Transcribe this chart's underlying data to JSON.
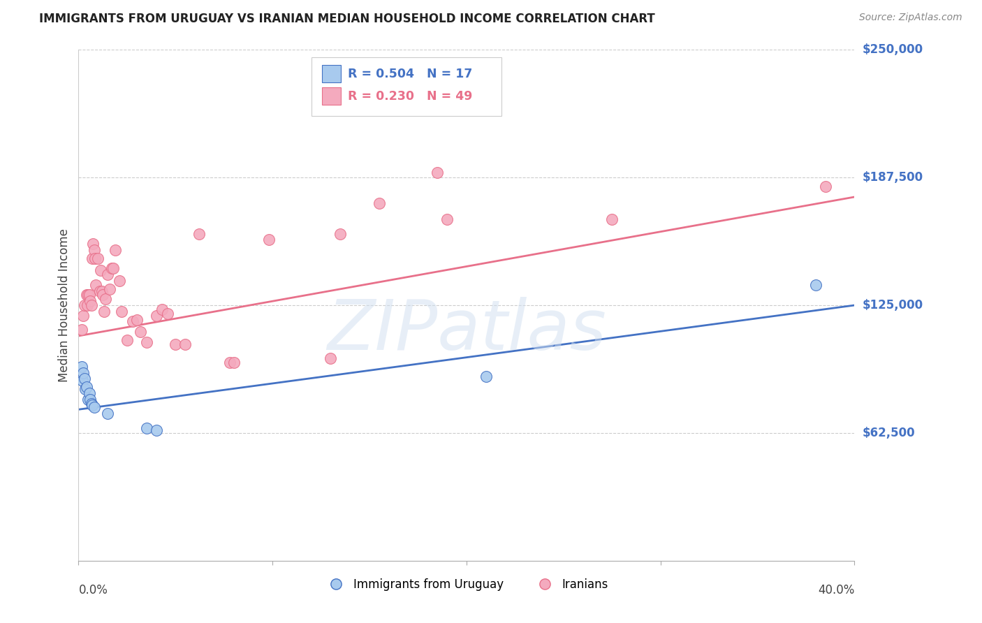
{
  "title": "IMMIGRANTS FROM URUGUAY VS IRANIAN MEDIAN HOUSEHOLD INCOME CORRELATION CHART",
  "source": "Source: ZipAtlas.com",
  "ylabel": "Median Household Income",
  "xmin": 0.0,
  "xmax": 40.0,
  "ymin": 0,
  "ymax": 250000,
  "yticks": [
    62500,
    125000,
    187500,
    250000
  ],
  "ytick_labels": [
    "$62,500",
    "$125,000",
    "$187,500",
    "$250,000"
  ],
  "color_blue": "#A8CAEE",
  "color_pink": "#F4AABE",
  "color_blue_line": "#4472C4",
  "color_pink_line": "#E8708A",
  "color_blue_dark": "#4472C4",
  "color_pink_dark": "#E8708A",
  "color_label": "#4472C4",
  "watermark_text": "ZIPatlas",
  "legend_label_blue": "Immigrants from Uruguay",
  "legend_label_pink": "Iranians",
  "legend1_r": "R = 0.504",
  "legend1_n": "N = 17",
  "legend2_r": "R = 0.230",
  "legend2_n": "N = 49",
  "blue_points": [
    [
      0.15,
      95000
    ],
    [
      0.2,
      88000
    ],
    [
      0.25,
      92000
    ],
    [
      0.3,
      89000
    ],
    [
      0.35,
      84000
    ],
    [
      0.4,
      85000
    ],
    [
      0.5,
      79000
    ],
    [
      0.55,
      82000
    ],
    [
      0.6,
      79000
    ],
    [
      0.65,
      77000
    ],
    [
      0.7,
      76000
    ],
    [
      0.8,
      75000
    ],
    [
      1.5,
      72000
    ],
    [
      3.5,
      65000
    ],
    [
      4.0,
      64000
    ],
    [
      21.0,
      90000
    ],
    [
      38.0,
      135000
    ]
  ],
  "pink_points": [
    [
      0.15,
      113000
    ],
    [
      0.25,
      120000
    ],
    [
      0.3,
      125000
    ],
    [
      0.4,
      130000
    ],
    [
      0.45,
      125000
    ],
    [
      0.5,
      130000
    ],
    [
      0.55,
      130000
    ],
    [
      0.6,
      127000
    ],
    [
      0.65,
      125000
    ],
    [
      0.7,
      148000
    ],
    [
      0.75,
      155000
    ],
    [
      0.8,
      152000
    ],
    [
      0.85,
      148000
    ],
    [
      0.9,
      135000
    ],
    [
      1.0,
      148000
    ],
    [
      1.1,
      132000
    ],
    [
      1.15,
      142000
    ],
    [
      1.2,
      132000
    ],
    [
      1.25,
      130000
    ],
    [
      1.3,
      122000
    ],
    [
      1.4,
      128000
    ],
    [
      1.5,
      140000
    ],
    [
      1.6,
      133000
    ],
    [
      1.7,
      143000
    ],
    [
      1.8,
      143000
    ],
    [
      1.9,
      152000
    ],
    [
      2.1,
      137000
    ],
    [
      2.2,
      122000
    ],
    [
      2.5,
      108000
    ],
    [
      2.8,
      117000
    ],
    [
      3.0,
      118000
    ],
    [
      3.2,
      112000
    ],
    [
      3.5,
      107000
    ],
    [
      4.0,
      120000
    ],
    [
      4.3,
      123000
    ],
    [
      4.6,
      121000
    ],
    [
      5.0,
      106000
    ],
    [
      5.5,
      106000
    ],
    [
      6.2,
      160000
    ],
    [
      7.8,
      97000
    ],
    [
      8.0,
      97000
    ],
    [
      9.8,
      157000
    ],
    [
      13.0,
      99000
    ],
    [
      13.5,
      160000
    ],
    [
      15.5,
      175000
    ],
    [
      18.5,
      190000
    ],
    [
      19.0,
      167000
    ],
    [
      27.5,
      167000
    ],
    [
      38.5,
      183000
    ]
  ],
  "blue_line_x": [
    0.0,
    40.0
  ],
  "blue_line_y": [
    74000,
    125000
  ],
  "pink_line_x": [
    0.0,
    40.0
  ],
  "pink_line_y": [
    110000,
    178000
  ]
}
